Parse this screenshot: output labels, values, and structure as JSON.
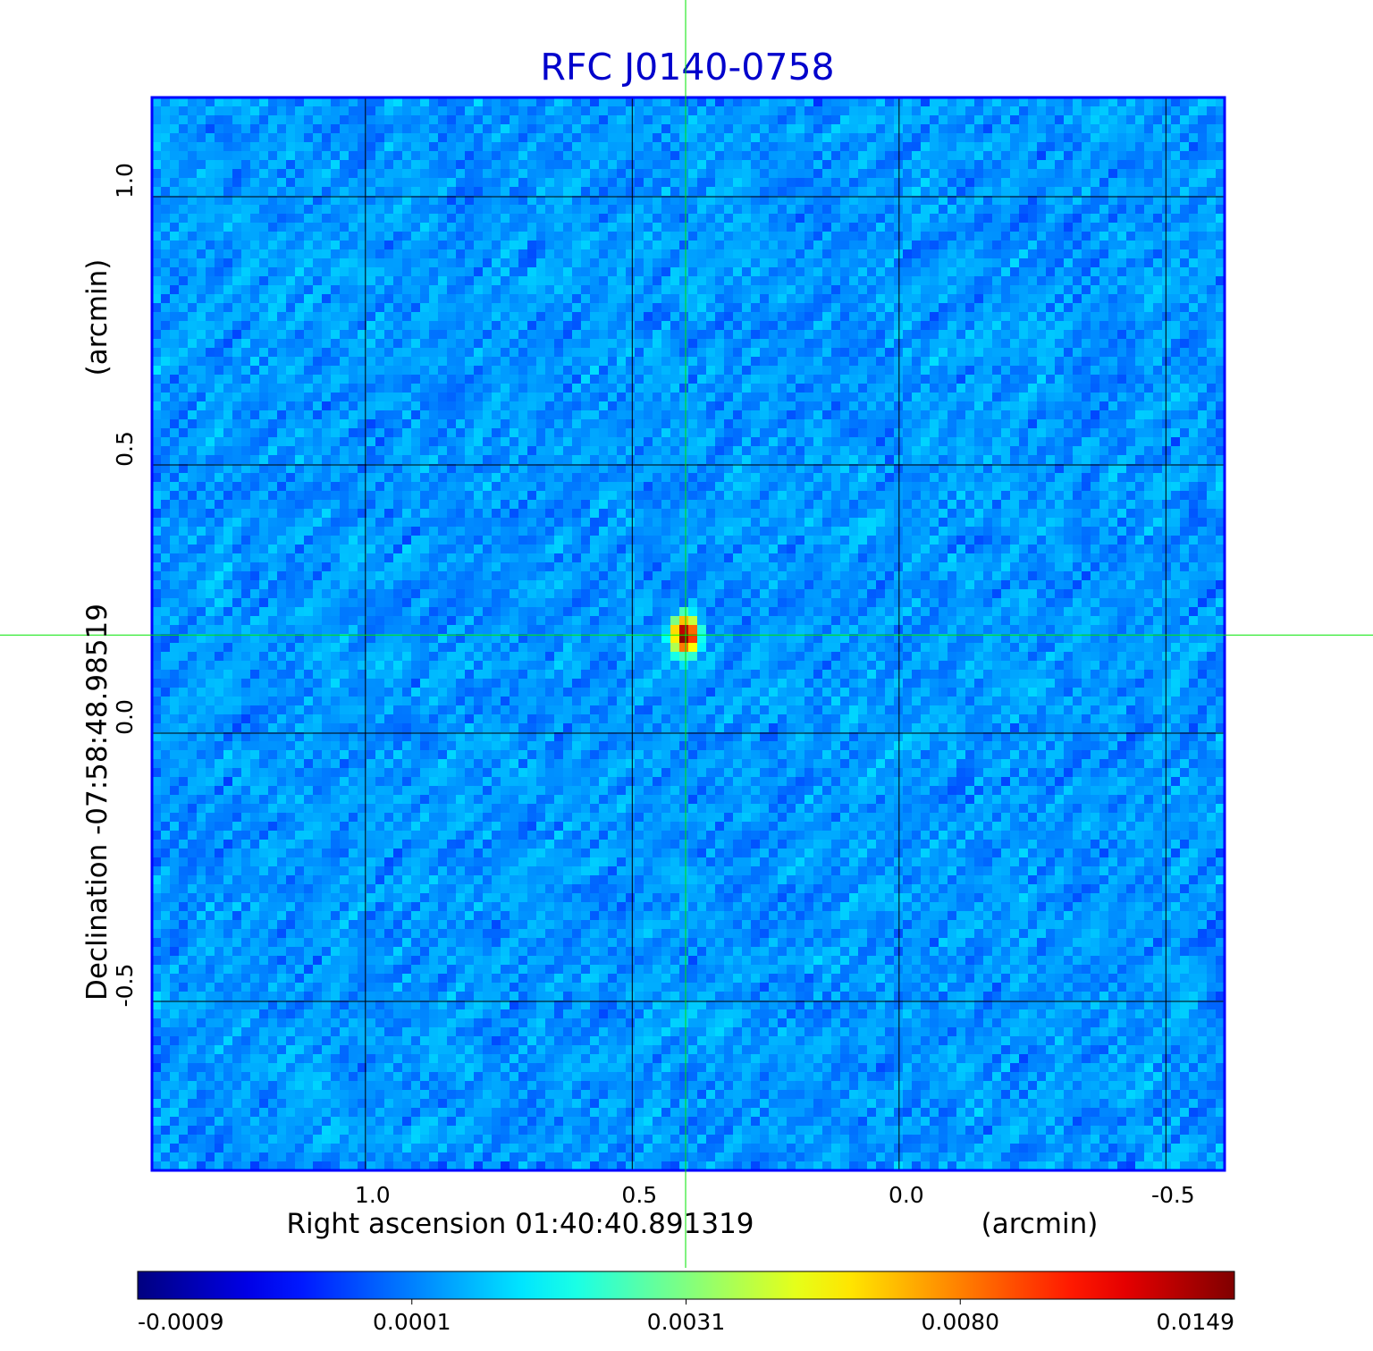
{
  "chart_data": {
    "type": "heatmap",
    "title": "RFC J0140-0758",
    "xlabel": "Right ascension  01:40:40.891319",
    "xunit": "(arcmin)",
    "ylabel": "Declination  -07:58:48.98519",
    "yunit": "(arcmin)",
    "xlim": [
      1.4,
      -0.61
    ],
    "ylim": [
      -0.815,
      1.185
    ],
    "x_ticks": [
      1.0,
      0.5,
      0.0,
      -0.5
    ],
    "x_tick_labels": [
      "1.0",
      "0.5",
      "0.0",
      "-0.5"
    ],
    "y_ticks": [
      1.0,
      0.5,
      0.0,
      -0.5
    ],
    "y_tick_labels": [
      "1.0",
      "0.5",
      "0.0",
      "-0.5"
    ],
    "grid": true,
    "colormap": "jet",
    "crosshair": {
      "x": 0.4,
      "y": 0.183,
      "color": "#00e600"
    },
    "source": {
      "x": 0.4,
      "y": 0.183,
      "peak": 0.0149
    },
    "background_noise": {
      "min": -0.0009,
      "typical": 0.0006
    },
    "colorbar": {
      "min": -0.0009,
      "max": 0.0149,
      "tick_labels": [
        "-0.0009",
        "0.0001",
        "0.0031",
        "0.0080",
        "0.0149"
      ]
    },
    "colors": {
      "title": "#0000cc",
      "frame": "#0000ff",
      "grid": "#000000",
      "text": "#000000"
    }
  }
}
